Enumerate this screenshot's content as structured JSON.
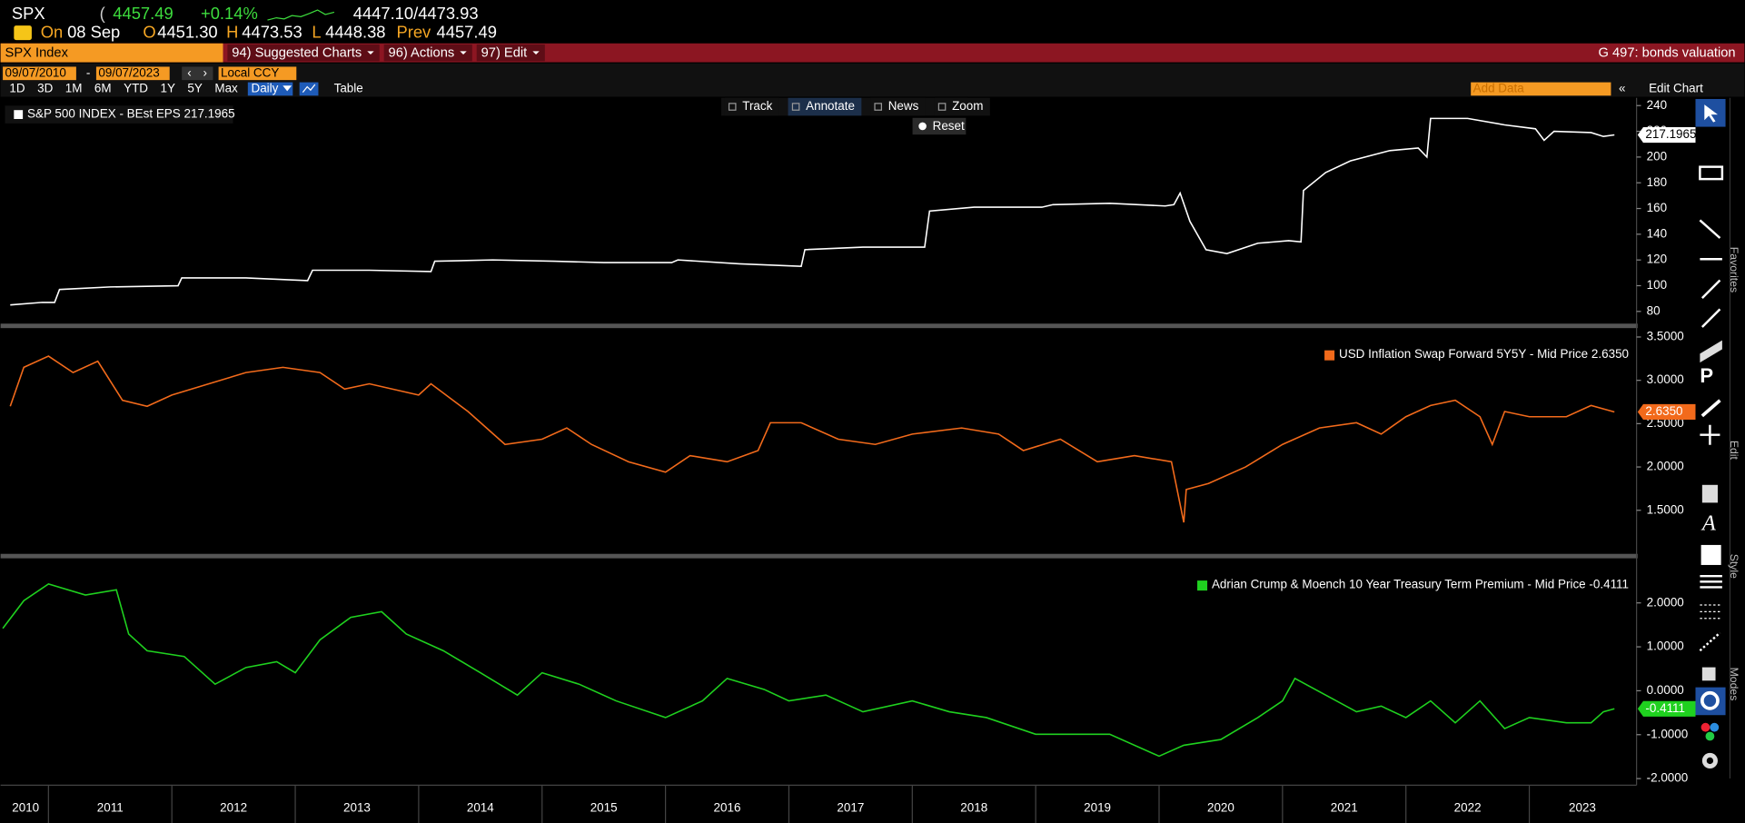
{
  "header": {
    "ticker": "SPX",
    "price": "4457.49",
    "change": "+0.14%",
    "bid_ask": "4447.10/4473.93",
    "date_prefix": "On",
    "date": "08 Sep",
    "open_label": "O",
    "open": "4451.30",
    "high_label": "H",
    "high": "4473.53",
    "low_label": "L",
    "low": "4448.38",
    "prev_label": "Prev",
    "prev": "4457.49"
  },
  "menu_bar": {
    "security": "SPX Index",
    "menus": [
      "94) Suggested Charts",
      "96) Actions",
      "97) Edit"
    ],
    "page_title": "G 497: bonds valuation"
  },
  "toolbar": {
    "start_date": "09/07/2010",
    "end_date": "09/07/2023",
    "currency": "Local CCY",
    "periods": [
      "1D",
      "3D",
      "1M",
      "6M",
      "YTD",
      "1Y",
      "5Y",
      "Max"
    ],
    "frequency": "Daily",
    "table": "Table",
    "add_data": "Add Data",
    "edit_chart": "Edit Chart"
  },
  "chart_tools": [
    "Track",
    "Annotate",
    "News",
    "Zoom"
  ],
  "reset": "Reset",
  "side_tabs": [
    "Favorites",
    "Edit",
    "Style",
    "Modes"
  ],
  "chart_data": [
    {
      "type": "line",
      "legend": "upper left",
      "xlim": [
        2010.63,
        2023.86
      ],
      "ylim": [
        70.5,
        246
      ],
      "yticks": [
        80,
        100,
        120,
        140,
        160,
        180,
        200,
        220,
        240
      ],
      "last_value_label": "217.1965",
      "x": [
        2010.69,
        2010.95,
        2011.05,
        2011.09,
        2011.5,
        2012.05,
        2012.08,
        2012.6,
        2013.1,
        2013.14,
        2013.6,
        2014.1,
        2014.13,
        2014.6,
        2015.1,
        2015.5,
        2016.05,
        2016.1,
        2016.6,
        2017.1,
        2017.13,
        2017.6,
        2018.1,
        2018.14,
        2018.5,
        2019.05,
        2019.14,
        2019.6,
        2020.05,
        2020.12,
        2020.17,
        2020.25,
        2020.38,
        2020.55,
        2020.8,
        2021.05,
        2021.15,
        2021.17,
        2021.35,
        2021.55,
        2021.87,
        2022.1,
        2022.17,
        2022.2,
        2022.5,
        2022.8,
        2023.05,
        2023.12,
        2023.2,
        2023.5,
        2023.6,
        2023.69
      ],
      "series": [
        {
          "name": "S&P 500 INDEX - BEst EPS 217.1965",
          "color": "#ffffff",
          "values": [
            85,
            87,
            87,
            97,
            99,
            100,
            106,
            106,
            104,
            112,
            112,
            111,
            119,
            120,
            119,
            118,
            118,
            120,
            117,
            115,
            128,
            130,
            130,
            158,
            161,
            161,
            163,
            164,
            162,
            163,
            172,
            150,
            128,
            125,
            133,
            135,
            134,
            174,
            188,
            197,
            205,
            207,
            200,
            230,
            230,
            225,
            222,
            213,
            220,
            219,
            216,
            217.1965
          ]
        }
      ]
    },
    {
      "type": "line",
      "legend": "upper right",
      "xlim": [
        2010.63,
        2023.86
      ],
      "ylim": [
        1.01,
        3.59
      ],
      "yticks": [
        {
          "value": 1.5,
          "label": "1.5000"
        },
        {
          "value": 2,
          "label": "2.0000"
        },
        {
          "value": 2.5,
          "label": "2.5000"
        },
        {
          "value": 3,
          "label": "3.0000"
        },
        {
          "value": 3.5,
          "label": "3.5000"
        }
      ],
      "last_value_label": "2.6350",
      "x": [
        2010.69,
        2010.8,
        2011.0,
        2011.2,
        2011.4,
        2011.6,
        2011.8,
        2012.0,
        2012.3,
        2012.6,
        2012.9,
        2013.2,
        2013.4,
        2013.6,
        2014.0,
        2014.1,
        2014.4,
        2014.7,
        2015.0,
        2015.2,
        2015.4,
        2015.7,
        2016.0,
        2016.2,
        2016.5,
        2016.75,
        2016.85,
        2017.1,
        2017.4,
        2017.7,
        2018.0,
        2018.4,
        2018.7,
        2018.9,
        2019.2,
        2019.5,
        2019.8,
        2020.1,
        2020.2,
        2020.22,
        2020.4,
        2020.7,
        2021.0,
        2021.3,
        2021.6,
        2021.8,
        2022.0,
        2022.2,
        2022.4,
        2022.6,
        2022.7,
        2022.8,
        2023.0,
        2023.3,
        2023.5,
        2023.69
      ],
      "series": [
        {
          "name": "USD Inflation Swap Forward 5Y5Y - Mid Price 2.6350",
          "color": "#f26a1b",
          "values": [
            2.7,
            3.15,
            3.28,
            3.09,
            3.22,
            2.77,
            2.7,
            2.83,
            2.96,
            3.09,
            3.15,
            3.09,
            2.9,
            2.96,
            2.83,
            2.96,
            2.64,
            2.26,
            2.32,
            2.45,
            2.26,
            2.06,
            1.94,
            2.13,
            2.06,
            2.19,
            2.51,
            2.51,
            2.32,
            2.26,
            2.38,
            2.45,
            2.38,
            2.19,
            2.32,
            2.06,
            2.13,
            2.06,
            1.36,
            1.74,
            1.81,
            2.0,
            2.26,
            2.45,
            2.51,
            2.38,
            2.58,
            2.71,
            2.77,
            2.58,
            2.26,
            2.64,
            2.58,
            2.58,
            2.71,
            2.635
          ]
        }
      ]
    },
    {
      "type": "line",
      "legend": "upper right",
      "xlim": [
        2010.63,
        2023.86
      ],
      "ylim": [
        -2.15,
        2.99
      ],
      "yticks": [
        {
          "value": -2,
          "label": "-2.0000"
        },
        {
          "value": -1,
          "label": "-1.0000"
        },
        {
          "value": 0,
          "label": "0.0000"
        },
        {
          "value": 1,
          "label": "1.0000"
        },
        {
          "value": 2,
          "label": "2.0000"
        }
      ],
      "xticks": [
        2010,
        2011,
        2012,
        2013,
        2014,
        2015,
        2016,
        2017,
        2018,
        2019,
        2020,
        2021,
        2022,
        2023
      ],
      "last_value_label": "-0.4111",
      "x": [
        2010.63,
        2010.8,
        2011.0,
        2011.3,
        2011.55,
        2011.65,
        2011.8,
        2012.1,
        2012.35,
        2012.6,
        2012.85,
        2013.0,
        2013.2,
        2013.45,
        2013.7,
        2013.9,
        2014.2,
        2014.5,
        2014.8,
        2015.0,
        2015.3,
        2015.6,
        2016.0,
        2016.3,
        2016.5,
        2016.8,
        2017.0,
        2017.3,
        2017.6,
        2018.0,
        2018.3,
        2018.6,
        2019.0,
        2019.3,
        2019.6,
        2020.0,
        2020.2,
        2020.5,
        2020.8,
        2021.0,
        2021.1,
        2021.35,
        2021.6,
        2021.8,
        2022.0,
        2022.2,
        2022.4,
        2022.6,
        2022.8,
        2023.0,
        2023.3,
        2023.5,
        2023.6,
        2023.69
      ],
      "series": [
        {
          "name": "Adrian Crump & Moench 10 Year Treasury Term Premium - Mid Price -0.4111",
          "color": "#1fd11f",
          "values": [
            1.42,
            2.05,
            2.43,
            2.18,
            2.3,
            1.29,
            0.91,
            0.78,
            0.15,
            0.53,
            0.66,
            0.41,
            1.16,
            1.67,
            1.8,
            1.29,
            0.91,
            0.41,
            -0.1,
            0.41,
            0.15,
            -0.23,
            -0.61,
            -0.23,
            0.28,
            0.03,
            -0.23,
            -0.1,
            -0.48,
            -0.23,
            -0.48,
            -0.61,
            -0.99,
            -0.99,
            -0.99,
            -1.49,
            -1.24,
            -1.11,
            -0.61,
            -0.23,
            0.28,
            -0.1,
            -0.48,
            -0.35,
            -0.61,
            -0.23,
            -0.73,
            -0.23,
            -0.86,
            -0.61,
            -0.73,
            -0.73,
            -0.48,
            -0.4111
          ]
        }
      ]
    }
  ]
}
